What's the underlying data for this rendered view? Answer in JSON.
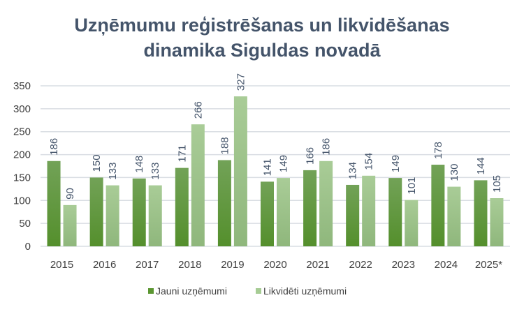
{
  "chart_data": {
    "type": "bar",
    "title_line1": "Uzņēmumu reģistrēšanas un likvidēšanas",
    "title_line2": "dinamika Siguldas novadā",
    "categories": [
      "2015",
      "2016",
      "2017",
      "2018",
      "2019",
      "2020",
      "2021",
      "2022",
      "2023",
      "2024",
      "2025*"
    ],
    "series": [
      {
        "name": "Jauni uzņēmumi",
        "color": "#5b9631",
        "values": [
          186,
          150,
          148,
          171,
          188,
          141,
          166,
          134,
          149,
          178,
          144
        ]
      },
      {
        "name": "Likvidēti uzņēmumi",
        "color": "#a6cc94",
        "values": [
          90,
          133,
          133,
          266,
          327,
          149,
          186,
          154,
          101,
          130,
          105
        ]
      }
    ],
    "ylim": [
      0,
      350
    ],
    "yticks": [
      "0",
      "50",
      "100",
      "150",
      "200",
      "250",
      "300",
      "350"
    ],
    "grid": true,
    "legend": "bottom",
    "xlabel": "",
    "ylabel": ""
  }
}
